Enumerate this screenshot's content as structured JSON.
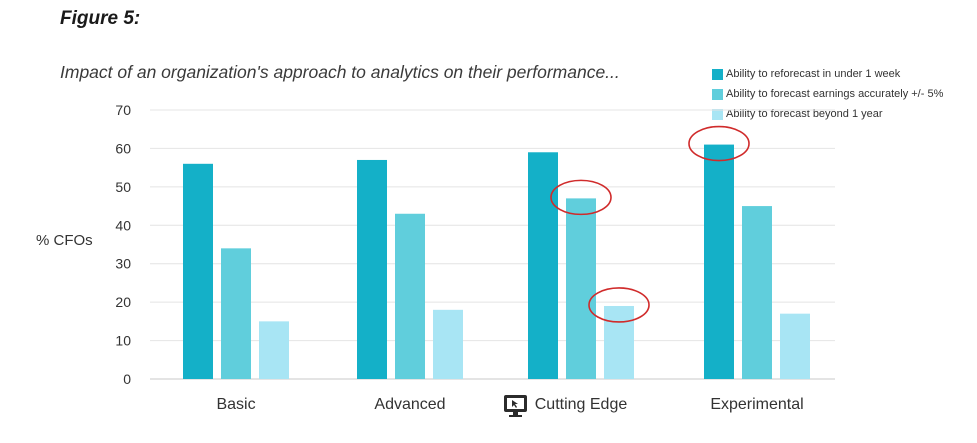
{
  "figure_label": "Figure 5:",
  "chart_data": {
    "type": "bar",
    "title": "Impact of an organization's approach to analytics on their performance...",
    "ylabel": "% CFOs",
    "xlabel": "",
    "ylim": [
      0,
      70
    ],
    "yticks": [
      0,
      10,
      20,
      30,
      40,
      50,
      60,
      70
    ],
    "grid": true,
    "legend_position": "top-right",
    "categories": [
      "Basic",
      "Advanced",
      "Cutting Edge",
      "Experimental"
    ],
    "series": [
      {
        "name": "Ability to reforecast in under 1 week",
        "color": "#14b0c8",
        "values": [
          56,
          57,
          59,
          61
        ]
      },
      {
        "name": "Ability to forecast earnings accurately +/- 5%",
        "color": "#60cedc",
        "values": [
          34,
          43,
          47,
          45
        ]
      },
      {
        "name": "Ability to forecast beyond 1 year",
        "color": "#a8e5f4",
        "values": [
          15,
          18,
          19,
          17
        ]
      }
    ],
    "highlights": [
      {
        "category": "Experimental",
        "series": 0
      },
      {
        "category": "Cutting Edge",
        "series": 1
      },
      {
        "category": "Cutting Edge",
        "series": 2
      }
    ],
    "highlight_color": "#d02b2b"
  },
  "icons": {
    "cutting_edge_marker": "monitor-cursor-icon"
  }
}
